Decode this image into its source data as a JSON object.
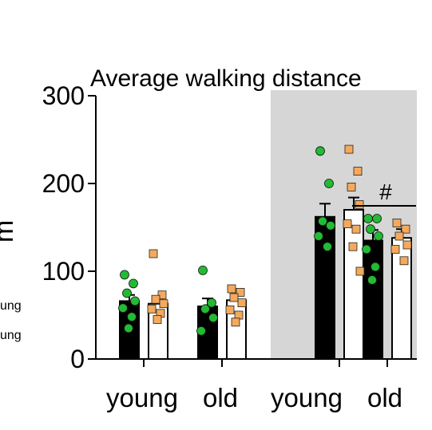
{
  "chart_data": {
    "type": "bar",
    "title": "Average walking distance",
    "ylabel": "m",
    "ylim": [
      0,
      300
    ],
    "yticks": [
      0,
      100,
      200,
      300
    ],
    "groups": [
      "young",
      "old",
      "young",
      "old"
    ],
    "shaded_groups": [
      2,
      3
    ],
    "legend_labels": [
      "ung",
      "ung"
    ],
    "annotation": {
      "text": "#",
      "group": 3
    },
    "colors": {
      "bar_series_1": "#000000",
      "bar_series_2": "#ffffff",
      "points_series_1": "#22bb33",
      "points_series_2": "#f4a95c",
      "shade": "#d6d6d6"
    },
    "series": [
      {
        "bar_fill": "black",
        "marker": "circle",
        "means": [
          66,
          60,
          162,
          135
        ],
        "errors": [
          7,
          9,
          15,
          12
        ],
        "points": [
          [
            96,
            86,
            75,
            66,
            58,
            48,
            35
          ],
          [
            101,
            64,
            57,
            47,
            32
          ],
          [
            237,
            200,
            157,
            152,
            140,
            128
          ],
          [
            160,
            160,
            148,
            140,
            125,
            105,
            90
          ]
        ]
      },
      {
        "bar_fill": "white",
        "marker": "square",
        "means": [
          63,
          67,
          170,
          138
        ],
        "errors": [
          6,
          7,
          14,
          10
        ],
        "points": [
          [
            120,
            73,
            68,
            63,
            57,
            52,
            45
          ],
          [
            80,
            76,
            70,
            64,
            56,
            50,
            42
          ],
          [
            239,
            214,
            196,
            176,
            154,
            148,
            128,
            100
          ],
          [
            155,
            148,
            140,
            130,
            125,
            112
          ]
        ]
      }
    ]
  }
}
